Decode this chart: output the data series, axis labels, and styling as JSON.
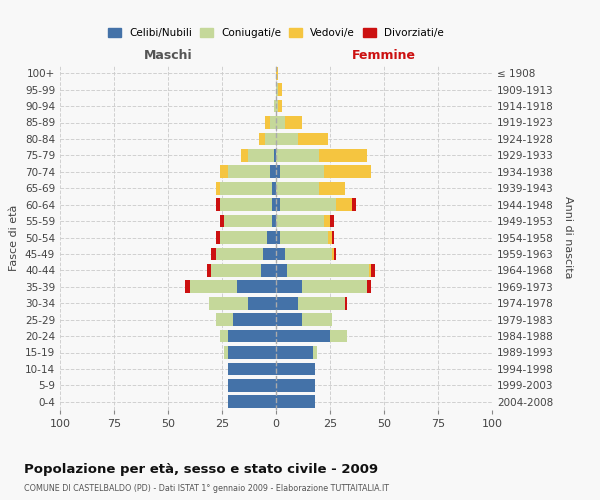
{
  "age_groups": [
    "0-4",
    "5-9",
    "10-14",
    "15-19",
    "20-24",
    "25-29",
    "30-34",
    "35-39",
    "40-44",
    "45-49",
    "50-54",
    "55-59",
    "60-64",
    "65-69",
    "70-74",
    "75-79",
    "80-84",
    "85-89",
    "90-94",
    "95-99",
    "100+"
  ],
  "birth_years": [
    "2004-2008",
    "1999-2003",
    "1994-1998",
    "1989-1993",
    "1984-1988",
    "1979-1983",
    "1974-1978",
    "1969-1973",
    "1964-1968",
    "1959-1963",
    "1954-1958",
    "1949-1953",
    "1944-1948",
    "1939-1943",
    "1934-1938",
    "1929-1933",
    "1924-1928",
    "1919-1923",
    "1914-1918",
    "1909-1913",
    "≤ 1908"
  ],
  "colors": {
    "celibi": "#4472a8",
    "coniugati": "#c5d89a",
    "vedovi": "#f5c540",
    "divorziati": "#cc1111"
  },
  "male": {
    "celibi": [
      22,
      22,
      22,
      22,
      22,
      20,
      13,
      18,
      7,
      6,
      4,
      2,
      2,
      2,
      3,
      1,
      0,
      0,
      0,
      0,
      0
    ],
    "coniugati": [
      0,
      0,
      0,
      2,
      4,
      8,
      18,
      22,
      23,
      22,
      22,
      22,
      24,
      24,
      19,
      12,
      5,
      3,
      1,
      0,
      0
    ],
    "vedovi": [
      0,
      0,
      0,
      0,
      0,
      0,
      0,
      0,
      0,
      0,
      0,
      0,
      0,
      2,
      4,
      3,
      3,
      2,
      0,
      0,
      0
    ],
    "divorziati": [
      0,
      0,
      0,
      0,
      0,
      0,
      0,
      2,
      2,
      2,
      2,
      2,
      2,
      0,
      0,
      0,
      0,
      0,
      0,
      0,
      0
    ]
  },
  "female": {
    "celibi": [
      18,
      18,
      18,
      17,
      25,
      12,
      10,
      12,
      5,
      4,
      2,
      0,
      2,
      0,
      2,
      0,
      0,
      0,
      0,
      0,
      0
    ],
    "coniugati": [
      0,
      0,
      0,
      2,
      8,
      14,
      22,
      30,
      38,
      22,
      22,
      22,
      26,
      20,
      20,
      20,
      10,
      4,
      1,
      1,
      0
    ],
    "vedovi": [
      0,
      0,
      0,
      0,
      0,
      0,
      0,
      0,
      1,
      1,
      2,
      3,
      7,
      12,
      22,
      22,
      14,
      8,
      2,
      2,
      1
    ],
    "divorziati": [
      0,
      0,
      0,
      0,
      0,
      0,
      1,
      2,
      2,
      1,
      1,
      2,
      2,
      0,
      0,
      0,
      0,
      0,
      0,
      0,
      0
    ]
  },
  "title": "Popolazione per età, sesso e stato civile - 2009",
  "subtitle": "COMUNE DI CASTELBALDO (PD) - Dati ISTAT 1° gennaio 2009 - Elaborazione TUTTAITALIA.IT",
  "xlabel_left": "Maschi",
  "xlabel_right": "Femmine",
  "ylabel_left": "Fasce di età",
  "ylabel_right": "Anni di nascita",
  "xlim": 100,
  "legend_labels": [
    "Celibi/Nubili",
    "Coniugati/e",
    "Vedovi/e",
    "Divorziati/e"
  ],
  "bg_color": "#f8f8f8",
  "grid_color": "#cccccc"
}
